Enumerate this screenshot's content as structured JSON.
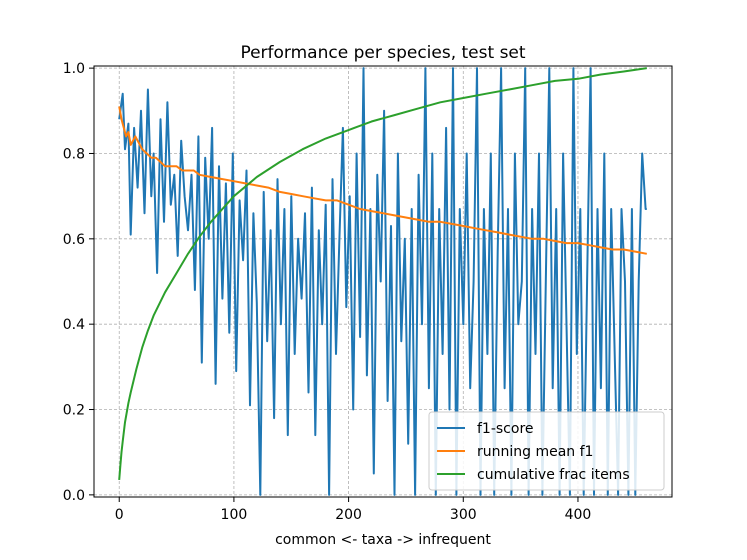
{
  "chart_data": {
    "type": "line",
    "title": "Performance per species, test set",
    "xlabel": "common <- taxa -> infrequent",
    "ylabel": "",
    "xlim": [
      -22,
      482
    ],
    "ylim": [
      -0.005,
      1.005
    ],
    "x_ticks": [
      0,
      100,
      200,
      300,
      400
    ],
    "y_ticks": [
      0.0,
      0.2,
      0.4,
      0.6,
      0.8,
      1.0
    ],
    "y_tick_labels": [
      "0.0",
      "0.2",
      "0.4",
      "0.6",
      "0.8",
      "1.0"
    ],
    "grid": true,
    "legend_position": "lower-right",
    "series": [
      {
        "name": "f1-score",
        "color": "#1f77b4",
        "x": [
          0,
          3,
          5,
          8,
          10,
          13,
          16,
          19,
          22,
          25,
          28,
          30,
          33,
          36,
          39,
          42,
          45,
          48,
          51,
          54,
          57,
          60,
          63,
          66,
          69,
          72,
          75,
          78,
          81,
          84,
          87,
          90,
          93,
          96,
          99,
          102,
          105,
          108,
          111,
          114,
          117,
          120,
          123,
          126,
          129,
          132,
          135,
          138,
          141,
          144,
          147,
          150,
          153,
          156,
          159,
          162,
          165,
          168,
          171,
          174,
          177,
          180,
          183,
          186,
          189,
          192,
          195,
          198,
          201,
          204,
          207,
          210,
          213,
          216,
          219,
          222,
          225,
          228,
          231,
          234,
          237,
          240,
          243,
          246,
          249,
          252,
          255,
          258,
          261,
          264,
          267,
          270,
          273,
          276,
          279,
          282,
          285,
          288,
          291,
          294,
          297,
          300,
          303,
          306,
          309,
          312,
          315,
          318,
          321,
          324,
          327,
          330,
          333,
          336,
          339,
          342,
          345,
          348,
          351,
          354,
          357,
          360,
          363,
          366,
          369,
          372,
          375,
          378,
          381,
          384,
          387,
          390,
          393,
          396,
          399,
          402,
          405,
          408,
          411,
          414,
          417,
          420,
          423,
          426,
          429,
          432,
          435,
          438,
          441,
          444,
          447,
          450,
          453,
          456,
          459,
          460
        ],
        "values": [
          0.88,
          0.94,
          0.81,
          0.87,
          0.61,
          0.86,
          0.72,
          0.9,
          0.66,
          0.95,
          0.7,
          0.8,
          0.52,
          0.88,
          0.64,
          0.92,
          0.68,
          0.75,
          0.56,
          0.83,
          0.7,
          0.62,
          0.75,
          0.48,
          0.84,
          0.31,
          0.79,
          0.6,
          0.86,
          0.26,
          0.77,
          0.46,
          0.73,
          0.38,
          0.8,
          0.29,
          0.69,
          0.55,
          0.76,
          0.21,
          0.66,
          0.45,
          0.0,
          0.71,
          0.36,
          0.62,
          0.18,
          0.74,
          0.4,
          0.67,
          0.14,
          0.7,
          0.33,
          0.6,
          0.46,
          0.66,
          0.24,
          0.72,
          0.14,
          0.62,
          0.4,
          0.68,
          0.0,
          0.74,
          0.33,
          0.6,
          0.86,
          0.44,
          0.7,
          0.2,
          0.8,
          0.37,
          1.0,
          0.28,
          0.67,
          0.05,
          0.75,
          0.5,
          0.9,
          0.22,
          0.63,
          0.0,
          0.8,
          0.36,
          0.6,
          0.12,
          0.67,
          0.0,
          0.75,
          0.4,
          1.0,
          0.25,
          0.8,
          0.0,
          0.67,
          0.33,
          0.86,
          0.2,
          1.0,
          0.0,
          0.67,
          0.4,
          0.8,
          0.25,
          0.5,
          1.0,
          0.0,
          0.67,
          0.33,
          0.8,
          0.0,
          0.57,
          1.0,
          0.25,
          0.67,
          0.0,
          0.8,
          0.4,
          0.5,
          1.0,
          0.0,
          0.67,
          0.33,
          0.8,
          0.0,
          0.5,
          1.0,
          0.25,
          0.67,
          0.0,
          0.8,
          0.4,
          0.0,
          1.0,
          0.33,
          0.67,
          0.0,
          0.5,
          1.0,
          0.0,
          0.67,
          0.25,
          0.8,
          0.0,
          0.67,
          0.33,
          0.0,
          0.67,
          0.5,
          0.0,
          0.67,
          0.0,
          0.5,
          0.8,
          0.67,
          0.67
        ]
      },
      {
        "name": "running mean f1",
        "color": "#ff7f0e",
        "x": [
          0,
          2,
          4,
          6,
          8,
          10,
          12,
          14,
          16,
          18,
          20,
          24,
          28,
          32,
          36,
          40,
          45,
          50,
          55,
          60,
          65,
          70,
          80,
          90,
          100,
          110,
          120,
          130,
          140,
          150,
          160,
          170,
          180,
          190,
          200,
          210,
          220,
          230,
          240,
          250,
          260,
          270,
          280,
          290,
          300,
          310,
          320,
          330,
          340,
          350,
          360,
          370,
          380,
          390,
          400,
          410,
          420,
          430,
          440,
          450,
          460
        ],
        "values": [
          0.91,
          0.88,
          0.86,
          0.84,
          0.85,
          0.82,
          0.83,
          0.84,
          0.83,
          0.82,
          0.81,
          0.8,
          0.79,
          0.79,
          0.78,
          0.77,
          0.77,
          0.77,
          0.76,
          0.76,
          0.76,
          0.75,
          0.745,
          0.74,
          0.735,
          0.73,
          0.725,
          0.72,
          0.71,
          0.705,
          0.7,
          0.695,
          0.69,
          0.69,
          0.68,
          0.67,
          0.665,
          0.66,
          0.655,
          0.65,
          0.645,
          0.64,
          0.64,
          0.635,
          0.63,
          0.625,
          0.62,
          0.615,
          0.61,
          0.605,
          0.6,
          0.6,
          0.595,
          0.59,
          0.59,
          0.585,
          0.58,
          0.575,
          0.575,
          0.57,
          0.565
        ]
      },
      {
        "name": "cumulative frac items",
        "color": "#2ca02c",
        "x": [
          0,
          1,
          2,
          3,
          5,
          8,
          10,
          15,
          20,
          25,
          30,
          40,
          50,
          60,
          70,
          80,
          90,
          100,
          120,
          140,
          160,
          180,
          200,
          220,
          240,
          260,
          280,
          300,
          320,
          340,
          360,
          380,
          400,
          420,
          440,
          460
        ],
        "values": [
          0.035,
          0.07,
          0.1,
          0.125,
          0.17,
          0.215,
          0.24,
          0.295,
          0.345,
          0.385,
          0.42,
          0.475,
          0.52,
          0.565,
          0.605,
          0.64,
          0.67,
          0.7,
          0.745,
          0.78,
          0.81,
          0.835,
          0.855,
          0.875,
          0.89,
          0.905,
          0.92,
          0.93,
          0.94,
          0.95,
          0.96,
          0.97,
          0.975,
          0.985,
          0.992,
          1.0
        ]
      }
    ]
  }
}
